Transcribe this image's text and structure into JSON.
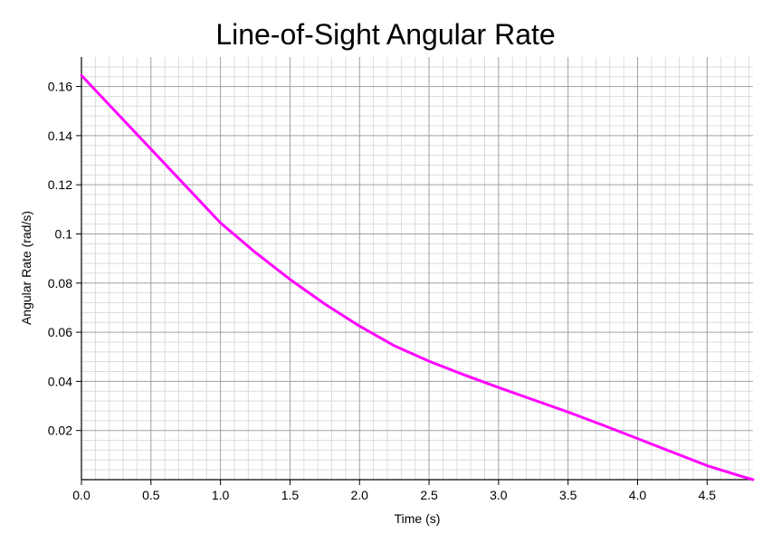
{
  "chart_data": {
    "type": "line",
    "title": "Line-of-Sight Angular Rate",
    "xlabel": "Time (s)",
    "ylabel": "Angular Rate (rad/s)",
    "xlim": [
      0,
      4.83
    ],
    "ylim": [
      0,
      0.172
    ],
    "x_ticks": [
      0,
      0.5,
      1,
      1.5,
      2,
      2.5,
      3,
      3.5,
      4,
      4.5
    ],
    "x_tick_labels": [
      "0.0",
      "0.5",
      "1.0",
      "1.5",
      "2.0",
      "2.5",
      "3.0",
      "3.5",
      "4.0",
      "4.5"
    ],
    "y_ticks": [
      0.02,
      0.04,
      0.06,
      0.08,
      0.1,
      0.12,
      0.14,
      0.16
    ],
    "y_tick_labels": [
      "0.02",
      "0.04",
      "0.06",
      "0.08",
      "0.1",
      "0.12",
      "0.14",
      "0.16"
    ],
    "grid": true,
    "minor_grid": true,
    "legend": "none",
    "series": [
      {
        "color": "#ff00ff",
        "x": [
          0,
          0.25,
          0.5,
          0.75,
          1.0,
          1.25,
          1.5,
          1.75,
          2.0,
          2.25,
          2.5,
          2.75,
          3.0,
          3.25,
          3.5,
          3.75,
          4.0,
          4.25,
          4.5,
          4.75,
          4.83
        ],
        "y": [
          0.1645,
          0.1495,
          0.1345,
          0.1195,
          0.1045,
          0.0925,
          0.0815,
          0.0715,
          0.0625,
          0.0545,
          0.0482,
          0.0427,
          0.0375,
          0.0325,
          0.0275,
          0.0222,
          0.0167,
          0.0112,
          0.0057,
          0.0013,
          0.0
        ]
      }
    ]
  }
}
